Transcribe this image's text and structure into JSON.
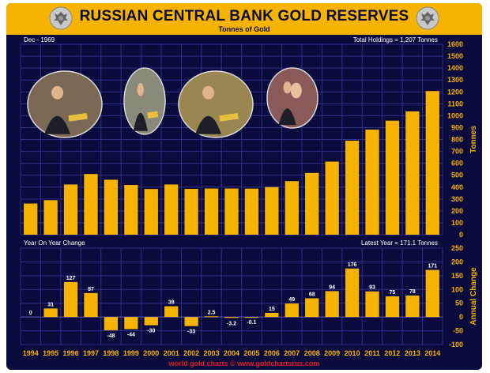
{
  "header": {
    "title": "RUSSIAN CENTRAL BANK GOLD RESERVES",
    "subtitle": "Tonnes of Gold",
    "emblem_icon": "double-headed-eagle-icon"
  },
  "footer": {
    "credit": "world gold charts © www.goldchartsrus.com"
  },
  "colors": {
    "bar": "#f6b300",
    "background": "#0a0a3c",
    "grid": "#2f2f8c",
    "axis_text": "#f6b300"
  },
  "chart_data": [
    {
      "type": "bar",
      "title": "RUSSIAN CENTRAL BANK GOLD RESERVES",
      "subtitle": "Tonnes of Gold",
      "corner_left": "Dec - 1969",
      "corner_right": "Total Holdings = 1,207 Tonnes",
      "ylabel": "Tonnes",
      "ylim": [
        0,
        1600
      ],
      "yticks": [
        0,
        100,
        200,
        300,
        400,
        500,
        600,
        700,
        800,
        900,
        1000,
        1100,
        1200,
        1300,
        1400,
        1500,
        1600
      ],
      "categories": [
        "1994",
        "1995",
        "1996",
        "1997",
        "1998",
        "1999",
        "2000",
        "2001",
        "2002",
        "2003",
        "2004",
        "2005",
        "2006",
        "2007",
        "2008",
        "2009",
        "2010",
        "2011",
        "2012",
        "2013",
        "2014"
      ],
      "values": [
        262,
        290,
        422,
        510,
        462,
        418,
        384,
        422,
        385,
        388,
        388,
        387,
        400,
        450,
        519,
        614,
        790,
        883,
        958,
        1036,
        1207
      ],
      "grid": true,
      "legend": "none"
    },
    {
      "type": "bar",
      "title": "Year On Year Change",
      "corner_right": "Latest Year = 171.1 Tonnes",
      "ylabel": "Annual Change",
      "ylim": [
        -100,
        250
      ],
      "yticks": [
        -100,
        -50,
        0,
        50,
        100,
        150,
        200,
        250
      ],
      "categories": [
        "1994",
        "1995",
        "1996",
        "1997",
        "1998",
        "1999",
        "2000",
        "2001",
        "2002",
        "2003",
        "2004",
        "2005",
        "2006",
        "2007",
        "2008",
        "2009",
        "2010",
        "2011",
        "2012",
        "2013",
        "2014"
      ],
      "values": [
        0,
        31,
        127,
        87,
        -48,
        -44,
        -30,
        39,
        -33,
        2.5,
        -3.2,
        -0.1,
        15,
        49,
        68,
        94,
        176,
        93,
        75,
        78,
        171
      ],
      "value_labels": [
        "0",
        "31",
        "127",
        "87",
        "-48",
        "-44",
        "-30",
        "39",
        "-33",
        "2.5",
        "-3.2",
        "-0.1",
        "15",
        "49",
        "68",
        "94",
        "176",
        "93",
        "75",
        "78",
        "171"
      ],
      "grid": true,
      "legend": "none"
    }
  ]
}
